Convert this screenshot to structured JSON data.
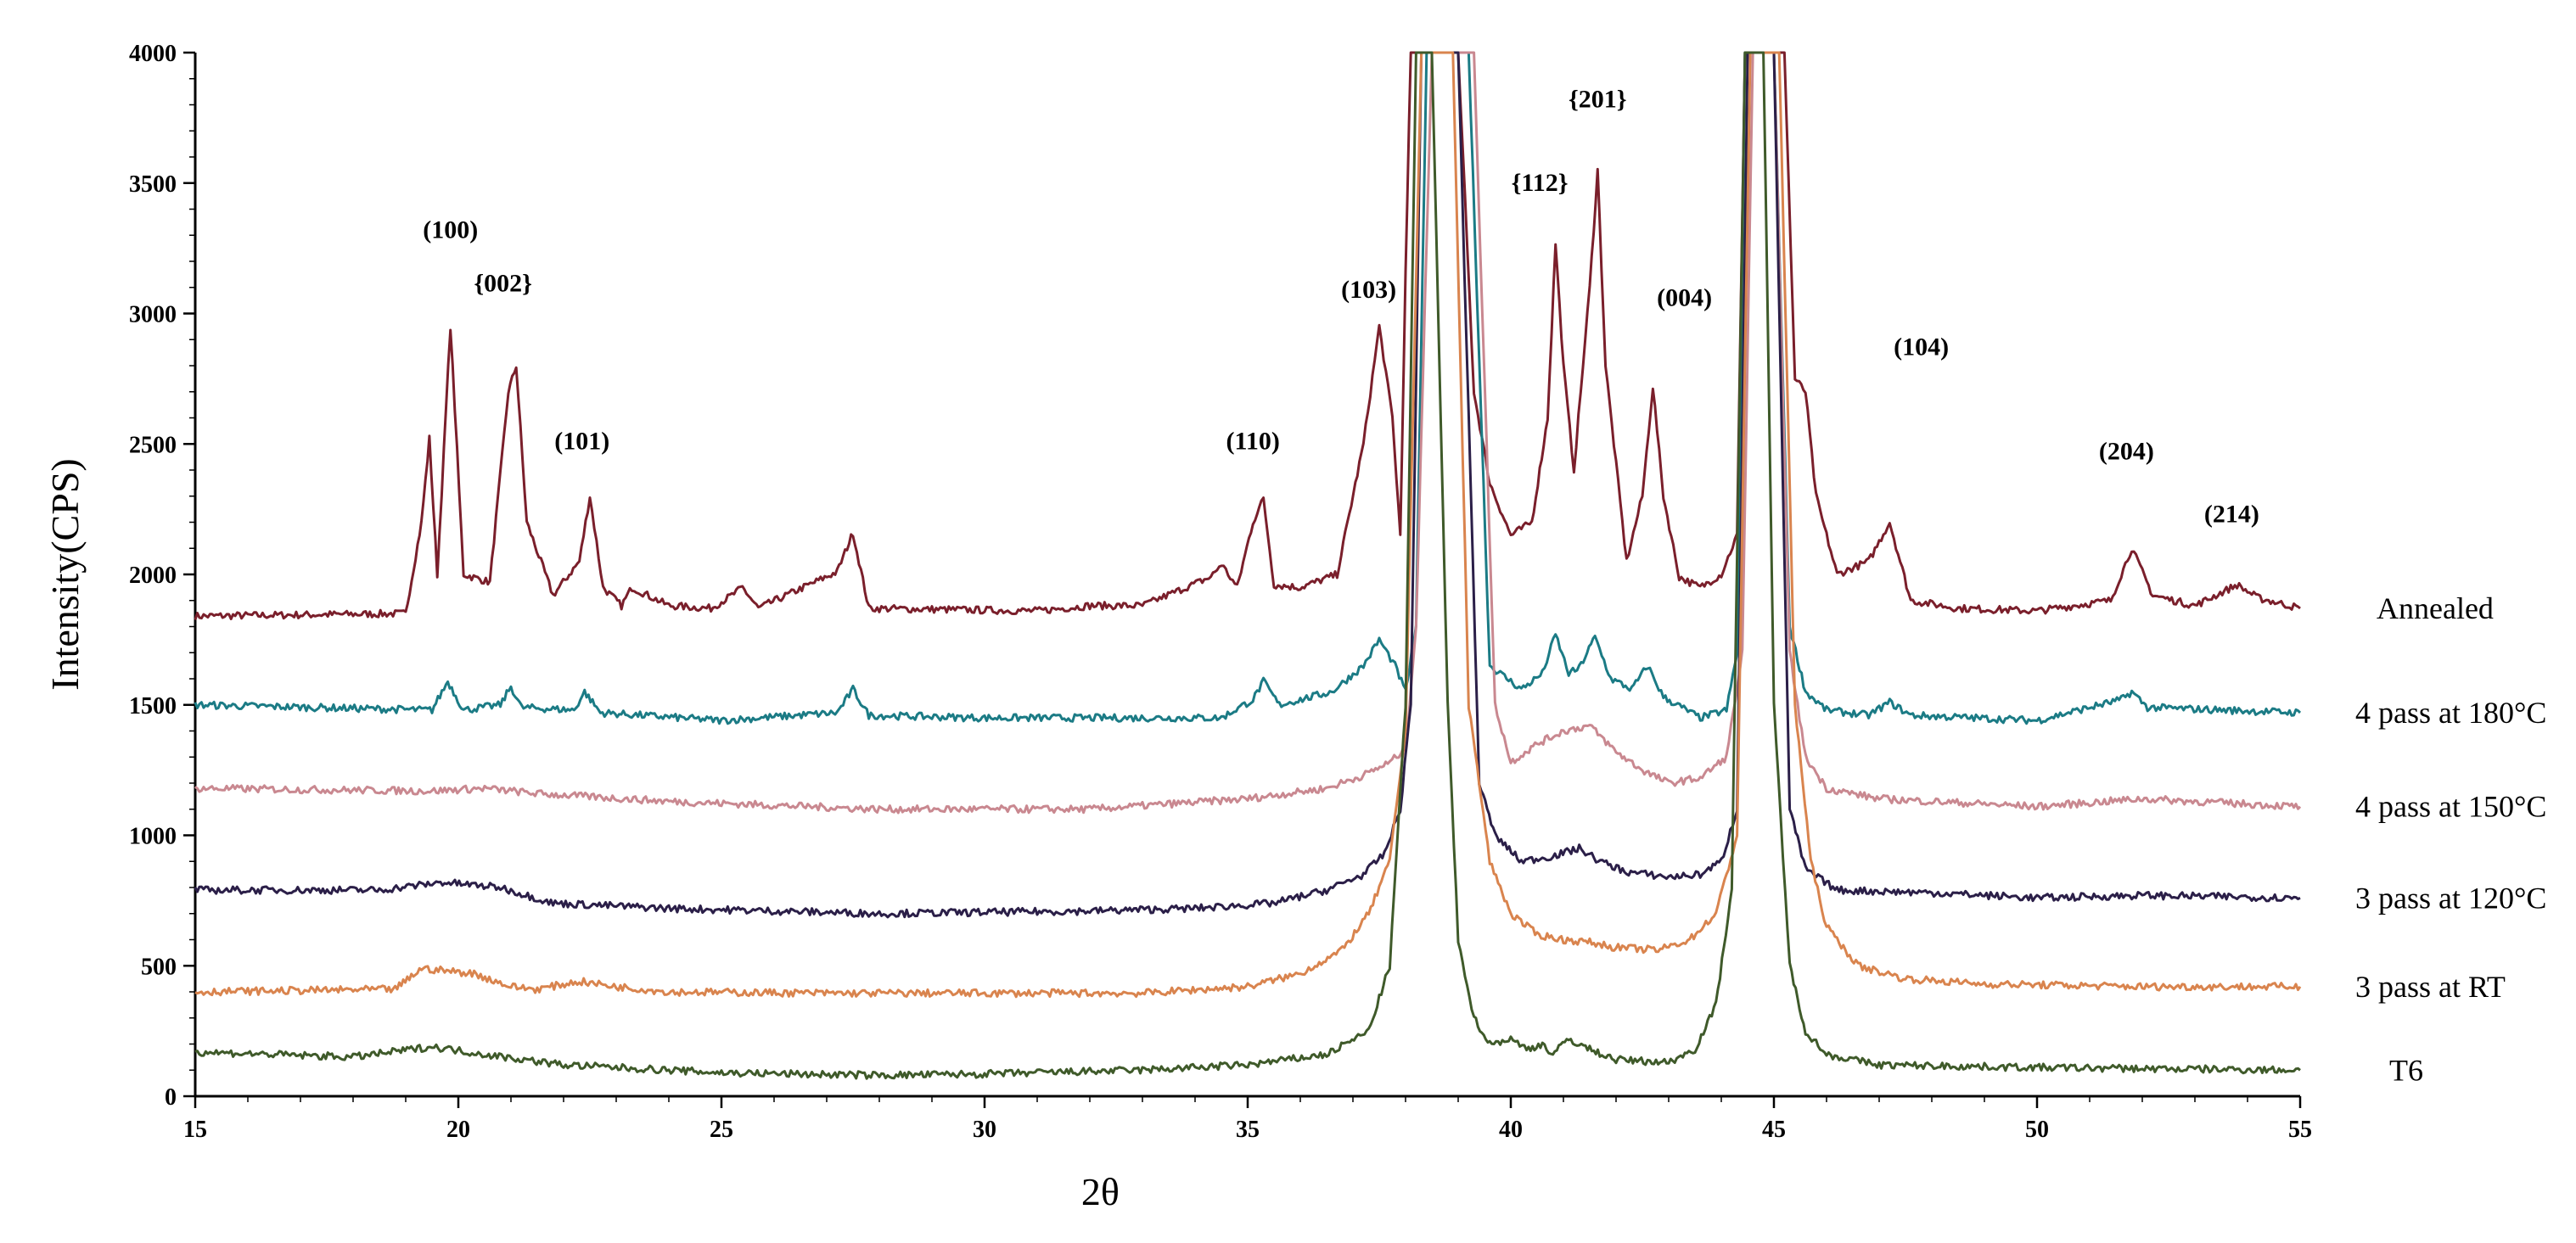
{
  "chart_data": {
    "type": "line",
    "xlabel": "2θ",
    "ylabel": "Intensity(CPS)",
    "xlim": [
      15,
      55
    ],
    "ylim": [
      0,
      4000
    ],
    "xticks": [
      15,
      20,
      25,
      30,
      35,
      40,
      45,
      50,
      55
    ],
    "yticks": [
      0,
      500,
      1000,
      1500,
      2000,
      2500,
      3000,
      3500,
      4000
    ],
    "grid": false,
    "legend": "series labels printed at right end of each curve",
    "series": [
      {
        "name": "Annealed",
        "color": "#7a1f2b",
        "x": [
          15,
          17,
          19,
          19.3,
          19.45,
          19.6,
          19.85,
          20.1,
          20.6,
          20.95,
          21.1,
          21.3,
          21.8,
          22.3,
          22.5,
          22.75,
          23.1,
          23.3,
          24,
          24.8,
          25.2,
          25.4,
          25.7,
          27.2,
          27.5,
          27.8,
          31,
          32,
          33,
          34.3,
          34.5,
          34.8,
          35.1,
          35.3,
          35.5,
          36,
          36.7,
          37.2,
          37.5,
          37.75,
          37.9,
          38.0,
          38.1,
          38.2,
          38.5,
          39.0,
          39.3,
          39.6,
          40.0,
          40.4,
          40.7,
          40.85,
          41.0,
          41.2,
          41.5,
          41.65,
          41.8,
          42.2,
          42.5,
          42.7,
          42.9,
          43.2,
          43.6,
          44.0,
          44.3,
          44.45,
          44.55,
          44.7,
          45.0,
          45.2,
          45.4,
          45.6,
          45.8,
          46.2,
          46.8,
          47.2,
          47.6,
          48.5,
          50,
          51.4,
          51.8,
          52.2,
          53,
          53.8,
          54.2,
          55
        ],
        "y": [
          1840,
          1845,
          1850,
          2200,
          2520,
          2000,
          2950,
          2000,
          1970,
          2700,
          2800,
          2200,
          1920,
          2050,
          2300,
          1950,
          1880,
          1950,
          1880,
          1870,
          1920,
          1950,
          1870,
          2010,
          2160,
          1870,
          1860,
          1880,
          1880,
          1990,
          2040,
          1950,
          2200,
          2290,
          1960,
          1950,
          2000,
          2500,
          2950,
          2600,
          2150,
          3150,
          4000,
          4000,
          4000,
          4000,
          2700,
          2350,
          2150,
          2200,
          2600,
          3270,
          2800,
          2400,
          3100,
          3550,
          2800,
          2050,
          2300,
          2720,
          2300,
          1990,
          1950,
          2000,
          2150,
          4000,
          4000,
          4000,
          4000,
          4000,
          2750,
          2700,
          2300,
          2000,
          2050,
          2200,
          1900,
          1870,
          1860,
          1900,
          2100,
          1920,
          1880,
          1960,
          1910,
          1870
        ]
      },
      {
        "name": "4 pass at 180°C",
        "color": "#1b7b85",
        "x": [
          15,
          19.5,
          19.8,
          20.1,
          20.8,
          21.0,
          21.2,
          22.2,
          22.4,
          22.7,
          25,
          27.2,
          27.5,
          27.8,
          30,
          34.5,
          35.1,
          35.3,
          35.6,
          36.6,
          37.2,
          37.5,
          37.8,
          38.0,
          38.2,
          38.4,
          38.8,
          39.2,
          39.6,
          40.2,
          40.6,
          40.85,
          41.1,
          41.3,
          41.6,
          41.9,
          42.3,
          42.6,
          42.9,
          43.6,
          44.1,
          44.3,
          44.45,
          44.6,
          45.0,
          45.3,
          45.6,
          46.0,
          46.8,
          47.2,
          47.6,
          50,
          51.6,
          51.8,
          52.1,
          55
        ],
        "y": [
          1500,
          1480,
          1590,
          1480,
          1500,
          1570,
          1490,
          1480,
          1550,
          1470,
          1440,
          1470,
          1560,
          1460,
          1450,
          1450,
          1520,
          1590,
          1500,
          1550,
          1650,
          1750,
          1650,
          1550,
          1800,
          4000,
          4000,
          4000,
          1650,
          1560,
          1620,
          1770,
          1620,
          1640,
          1760,
          1600,
          1560,
          1650,
          1530,
          1450,
          1480,
          1700,
          4000,
          4000,
          4000,
          1800,
          1550,
          1480,
          1460,
          1510,
          1460,
          1440,
          1520,
          1550,
          1490,
          1470
        ]
      },
      {
        "name": "4 pass at 150°C",
        "color": "#c98890",
        "x": [
          15,
          19.5,
          20.5,
          21.5,
          24,
          28,
          32,
          35,
          36.5,
          37.2,
          37.7,
          38.0,
          38.2,
          38.5,
          38.9,
          39.3,
          39.7,
          40.0,
          40.5,
          41.0,
          41.5,
          42.0,
          42.5,
          43.0,
          43.6,
          44.1,
          44.4,
          44.6,
          45.0,
          45.3,
          45.6,
          46.0,
          47,
          50,
          52,
          55
        ],
        "y": [
          1180,
          1170,
          1180,
          1160,
          1130,
          1100,
          1100,
          1140,
          1180,
          1230,
          1280,
          1330,
          1800,
          4000,
          4000,
          4000,
          1500,
          1280,
          1350,
          1400,
          1420,
          1320,
          1250,
          1200,
          1220,
          1300,
          1700,
          4000,
          4000,
          1700,
          1300,
          1180,
          1140,
          1110,
          1140,
          1110
        ]
      },
      {
        "name": "3 pass at 120°C",
        "color": "#2b1f48",
        "x": [
          15,
          18.5,
          19.7,
          20.8,
          21.8,
          24,
          28,
          32,
          34,
          35.5,
          36.5,
          37.2,
          37.6,
          37.9,
          38.1,
          38.3,
          38.6,
          39.0,
          39.4,
          39.7,
          40.2,
          40.8,
          41.3,
          41.7,
          42.2,
          43.0,
          43.6,
          44.0,
          44.3,
          44.5,
          44.7,
          45.0,
          45.3,
          45.6,
          46.2,
          48,
          50,
          52,
          55
        ],
        "y": [
          790,
          790,
          820,
          800,
          740,
          720,
          700,
          710,
          720,
          740,
          790,
          850,
          930,
          1100,
          1500,
          4000,
          4000,
          4000,
          1200,
          1000,
          900,
          920,
          950,
          900,
          860,
          840,
          850,
          900,
          1100,
          4000,
          4000,
          4000,
          1100,
          870,
          790,
          780,
          760,
          770,
          760
        ]
      },
      {
        "name": "3 pass at RT",
        "color": "#d9844e",
        "x": [
          15,
          18.8,
          19.3,
          20.3,
          21.0,
          21.5,
          22.3,
          23.0,
          24,
          27,
          30,
          33,
          35,
          36,
          36.8,
          37.3,
          37.7,
          38.0,
          38.3,
          38.6,
          38.9,
          39.2,
          39.6,
          40.0,
          40.5,
          41.0,
          41.5,
          42.0,
          42.8,
          43.4,
          43.9,
          44.3,
          44.55,
          44.8,
          45.1,
          45.4,
          45.7,
          46.0,
          46.6,
          47.5,
          49,
          52,
          55
        ],
        "y": [
          400,
          410,
          490,
          470,
          420,
          410,
          440,
          420,
          400,
          395,
          395,
          395,
          420,
          470,
          560,
          700,
          900,
          1400,
          4000,
          4000,
          4000,
          1500,
          900,
          700,
          620,
          600,
          590,
          570,
          560,
          600,
          700,
          1000,
          4000,
          4000,
          4000,
          1500,
          900,
          650,
          500,
          450,
          430,
          420,
          420
        ]
      },
      {
        "name": "T6",
        "color": "#3f5a2a",
        "x": [
          15,
          18,
          19.5,
          20.5,
          22,
          25,
          28,
          30,
          33,
          35,
          36.5,
          37.3,
          37.7,
          38.0,
          38.2,
          38.5,
          38.8,
          39.0,
          39.3,
          39.6,
          40.0,
          40.3,
          40.6,
          40.8,
          41.1,
          41.5,
          42.0,
          43.0,
          43.5,
          43.9,
          44.2,
          44.45,
          44.6,
          44.8,
          45.0,
          45.3,
          45.6,
          46.0,
          47,
          50,
          55
        ],
        "y": [
          170,
          150,
          190,
          160,
          120,
          90,
          80,
          85,
          100,
          120,
          160,
          250,
          500,
          1500,
          4000,
          4000,
          1500,
          600,
          300,
          200,
          220,
          180,
          200,
          160,
          220,
          180,
          140,
          130,
          180,
          350,
          800,
          4000,
          4000,
          4000,
          1500,
          500,
          250,
          160,
          120,
          110,
          100
        ]
      }
    ],
    "peak_labels": [
      {
        "text": "(100)",
        "x": 19.85,
        "y": 3290
      },
      {
        "text": "{002}",
        "x": 20.85,
        "y": 3085
      },
      {
        "text": "(101)",
        "x": 22.35,
        "y": 2480
      },
      {
        "text": "(110)",
        "x": 35.1,
        "y": 2480
      },
      {
        "text": "(103)",
        "x": 37.3,
        "y": 3060
      },
      {
        "text": "{112}",
        "x": 40.55,
        "y": 3470
      },
      {
        "text": "{201}",
        "x": 41.65,
        "y": 3790
      },
      {
        "text": "(004)",
        "x": 43.3,
        "y": 3030
      },
      {
        "text": "(104)",
        "x": 47.8,
        "y": 2840
      },
      {
        "text": "(204)",
        "x": 51.7,
        "y": 2440
      },
      {
        "text": "(214)",
        "x": 53.7,
        "y": 2200
      }
    ]
  }
}
